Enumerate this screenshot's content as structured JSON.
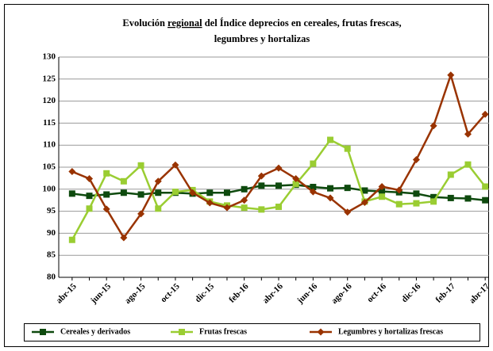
{
  "chart_data": {
    "type": "line",
    "title": {
      "line1": [
        "Evolución",
        "regional",
        "del Índice deprecios en cereales, frutas frescas,"
      ],
      "line2": "legumbres y hortalizas"
    },
    "categories": [
      "abr-15",
      null,
      "jun-15",
      null,
      "ago-15",
      null,
      "oct-15",
      null,
      "dic-15",
      null,
      "feb-16",
      null,
      "abr-16",
      null,
      "jun-16",
      null,
      "ago-16",
      null,
      "oct-16",
      null,
      "dic-16",
      null,
      "feb-17",
      null,
      "abr-17"
    ],
    "series": [
      {
        "name": "Cereales y derivados",
        "color": "#0e4a0e",
        "marker": "square",
        "values": [
          99,
          98.5,
          98.8,
          99.2,
          98.8,
          99.2,
          99.2,
          99,
          99.2,
          99.2,
          100,
          100.8,
          100.8,
          101,
          100.5,
          100.2,
          100.3,
          99.7,
          99.5,
          99.3,
          99,
          98.2,
          98,
          97.9,
          97.5
        ]
      },
      {
        "name": "Frutas frescas",
        "color": "#9acd32",
        "marker": "square",
        "values": [
          88.5,
          95.6,
          103.6,
          101.8,
          105.4,
          95.6,
          99.4,
          99.8,
          97.2,
          96.3,
          95.8,
          95.4,
          96,
          101.2,
          105.8,
          111.2,
          109.2,
          97.2,
          98.3,
          96.6,
          96.8,
          97.2,
          103.3,
          105.6,
          100.6
        ]
      },
      {
        "name": "Legumbres y hortalizas frescas",
        "color": "#993300",
        "marker": "diamond",
        "values": [
          104,
          102.4,
          95.5,
          89,
          94.4,
          101.8,
          105.5,
          99.2,
          96.9,
          95.8,
          97.5,
          103,
          104.8,
          102.4,
          99.4,
          98,
          94.8,
          97,
          100.6,
          99.8,
          106.7,
          114.4,
          125.9,
          112.5,
          117
        ]
      }
    ],
    "ylim": [
      80,
      130
    ],
    "yticks": [
      80,
      85,
      90,
      95,
      100,
      105,
      110,
      115,
      120,
      125,
      130
    ],
    "grid": true,
    "legend": "bottom"
  }
}
